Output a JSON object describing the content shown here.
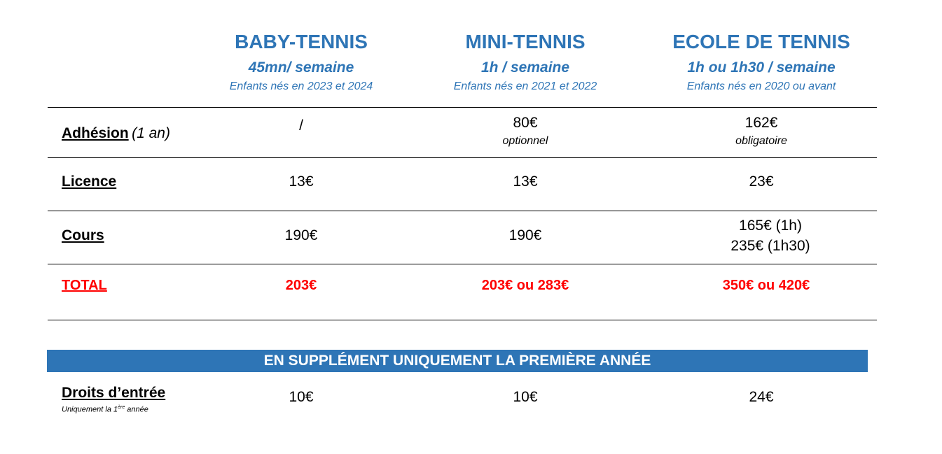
{
  "columns": [
    {
      "title": "BABY-TENNIS",
      "duration": "45mn/ semaine",
      "ages": "Enfants nés en 2023 et 2024"
    },
    {
      "title": "MINI-TENNIS",
      "duration": "1h / semaine",
      "ages": "Enfants nés en 2021 et 2022"
    },
    {
      "title": "ECOLE DE TENNIS",
      "duration": "1h ou 1h30 / semaine",
      "ages": "Enfants nés en 2020 ou avant"
    }
  ],
  "rows": {
    "adhesion": {
      "label": "Adhésion",
      "note": "(1 an)",
      "values": [
        "/",
        "80€",
        "162€"
      ],
      "subs": [
        "",
        "optionnel",
        "obligatoire"
      ]
    },
    "licence": {
      "label": "Licence",
      "values": [
        "13€",
        "13€",
        "23€"
      ]
    },
    "cours": {
      "label": "Cours",
      "values": [
        "190€",
        "190€",
        "165€ (1h)"
      ],
      "extra": "235€ (1h30)"
    },
    "total": {
      "label": "TOTAL",
      "values": [
        "203€",
        "203€ ou 283€",
        "350€ ou 420€"
      ]
    }
  },
  "supplement": {
    "banner": "EN SUPPLÉMENT UNIQUEMENT LA PREMIÈRE ANNÉE",
    "label": "Droits d’entrée",
    "note_prefix": "Uniquement la 1",
    "note_sup": "ère",
    "note_suffix": " année",
    "values": [
      "10€",
      "10€",
      "24€"
    ]
  },
  "colors": {
    "blue": "#2e75b6",
    "red": "#ff0000"
  }
}
